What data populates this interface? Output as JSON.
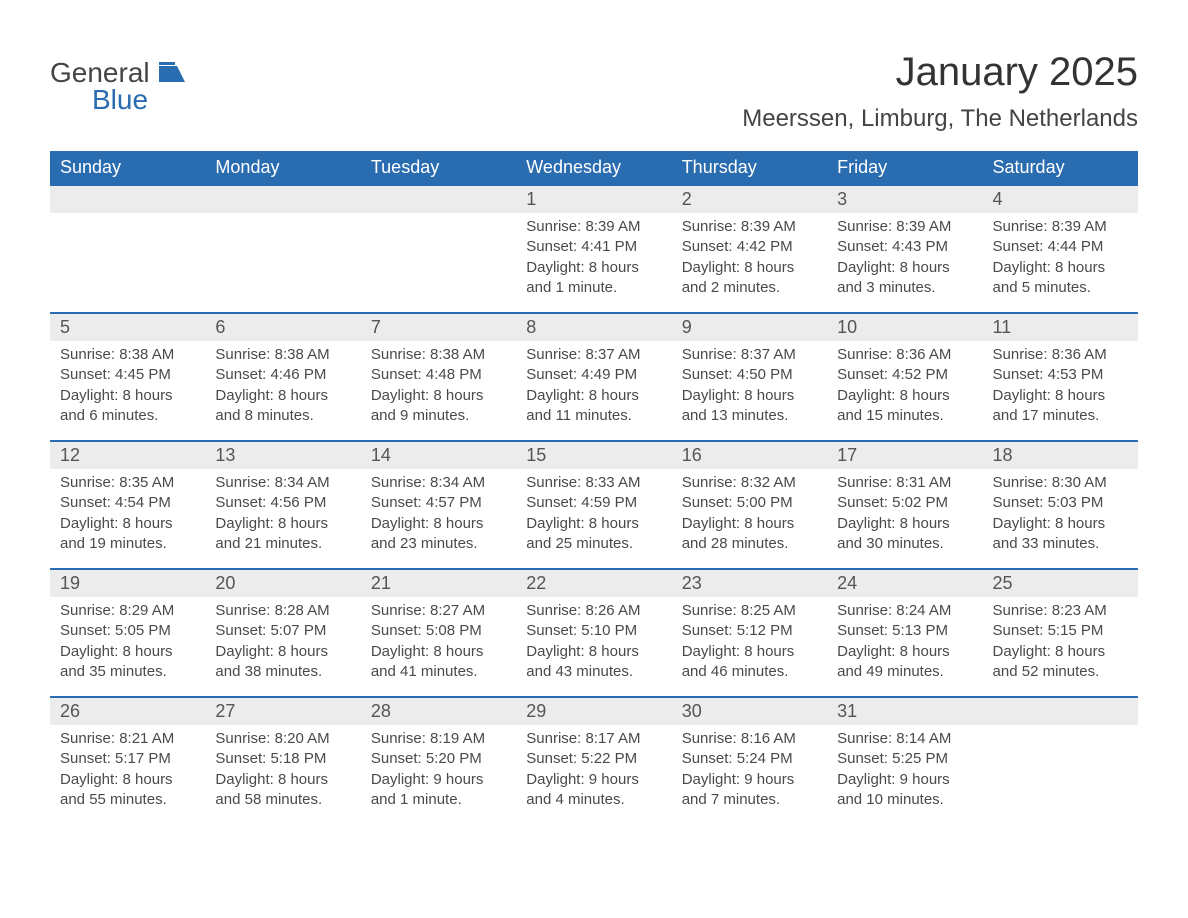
{
  "logo": {
    "word1": "General",
    "word2": "Blue"
  },
  "title": "January 2025",
  "location": "Meerssen, Limburg, The Netherlands",
  "colors": {
    "header_bg": "#2a6cb0",
    "header_text": "#ffffff",
    "daynum_bg": "#ececec",
    "row_topline": "#2a6cb0",
    "body_text": "#4a4a4a",
    "page_bg": "#ffffff"
  },
  "fonts": {
    "title_size_pt": 30,
    "location_size_pt": 18,
    "header_size_pt": 14,
    "cell_size_pt": 11
  },
  "weekdays": [
    "Sunday",
    "Monday",
    "Tuesday",
    "Wednesday",
    "Thursday",
    "Friday",
    "Saturday"
  ],
  "weeks": [
    [
      null,
      null,
      null,
      {
        "day": "1",
        "sunrise": "Sunrise: 8:39 AM",
        "sunset": "Sunset: 4:41 PM",
        "daylight": "Daylight: 8 hours and 1 minute."
      },
      {
        "day": "2",
        "sunrise": "Sunrise: 8:39 AM",
        "sunset": "Sunset: 4:42 PM",
        "daylight": "Daylight: 8 hours and 2 minutes."
      },
      {
        "day": "3",
        "sunrise": "Sunrise: 8:39 AM",
        "sunset": "Sunset: 4:43 PM",
        "daylight": "Daylight: 8 hours and 3 minutes."
      },
      {
        "day": "4",
        "sunrise": "Sunrise: 8:39 AM",
        "sunset": "Sunset: 4:44 PM",
        "daylight": "Daylight: 8 hours and 5 minutes."
      }
    ],
    [
      {
        "day": "5",
        "sunrise": "Sunrise: 8:38 AM",
        "sunset": "Sunset: 4:45 PM",
        "daylight": "Daylight: 8 hours and 6 minutes."
      },
      {
        "day": "6",
        "sunrise": "Sunrise: 8:38 AM",
        "sunset": "Sunset: 4:46 PM",
        "daylight": "Daylight: 8 hours and 8 minutes."
      },
      {
        "day": "7",
        "sunrise": "Sunrise: 8:38 AM",
        "sunset": "Sunset: 4:48 PM",
        "daylight": "Daylight: 8 hours and 9 minutes."
      },
      {
        "day": "8",
        "sunrise": "Sunrise: 8:37 AM",
        "sunset": "Sunset: 4:49 PM",
        "daylight": "Daylight: 8 hours and 11 minutes."
      },
      {
        "day": "9",
        "sunrise": "Sunrise: 8:37 AM",
        "sunset": "Sunset: 4:50 PM",
        "daylight": "Daylight: 8 hours and 13 minutes."
      },
      {
        "day": "10",
        "sunrise": "Sunrise: 8:36 AM",
        "sunset": "Sunset: 4:52 PM",
        "daylight": "Daylight: 8 hours and 15 minutes."
      },
      {
        "day": "11",
        "sunrise": "Sunrise: 8:36 AM",
        "sunset": "Sunset: 4:53 PM",
        "daylight": "Daylight: 8 hours and 17 minutes."
      }
    ],
    [
      {
        "day": "12",
        "sunrise": "Sunrise: 8:35 AM",
        "sunset": "Sunset: 4:54 PM",
        "daylight": "Daylight: 8 hours and 19 minutes."
      },
      {
        "day": "13",
        "sunrise": "Sunrise: 8:34 AM",
        "sunset": "Sunset: 4:56 PM",
        "daylight": "Daylight: 8 hours and 21 minutes."
      },
      {
        "day": "14",
        "sunrise": "Sunrise: 8:34 AM",
        "sunset": "Sunset: 4:57 PM",
        "daylight": "Daylight: 8 hours and 23 minutes."
      },
      {
        "day": "15",
        "sunrise": "Sunrise: 8:33 AM",
        "sunset": "Sunset: 4:59 PM",
        "daylight": "Daylight: 8 hours and 25 minutes."
      },
      {
        "day": "16",
        "sunrise": "Sunrise: 8:32 AM",
        "sunset": "Sunset: 5:00 PM",
        "daylight": "Daylight: 8 hours and 28 minutes."
      },
      {
        "day": "17",
        "sunrise": "Sunrise: 8:31 AM",
        "sunset": "Sunset: 5:02 PM",
        "daylight": "Daylight: 8 hours and 30 minutes."
      },
      {
        "day": "18",
        "sunrise": "Sunrise: 8:30 AM",
        "sunset": "Sunset: 5:03 PM",
        "daylight": "Daylight: 8 hours and 33 minutes."
      }
    ],
    [
      {
        "day": "19",
        "sunrise": "Sunrise: 8:29 AM",
        "sunset": "Sunset: 5:05 PM",
        "daylight": "Daylight: 8 hours and 35 minutes."
      },
      {
        "day": "20",
        "sunrise": "Sunrise: 8:28 AM",
        "sunset": "Sunset: 5:07 PM",
        "daylight": "Daylight: 8 hours and 38 minutes."
      },
      {
        "day": "21",
        "sunrise": "Sunrise: 8:27 AM",
        "sunset": "Sunset: 5:08 PM",
        "daylight": "Daylight: 8 hours and 41 minutes."
      },
      {
        "day": "22",
        "sunrise": "Sunrise: 8:26 AM",
        "sunset": "Sunset: 5:10 PM",
        "daylight": "Daylight: 8 hours and 43 minutes."
      },
      {
        "day": "23",
        "sunrise": "Sunrise: 8:25 AM",
        "sunset": "Sunset: 5:12 PM",
        "daylight": "Daylight: 8 hours and 46 minutes."
      },
      {
        "day": "24",
        "sunrise": "Sunrise: 8:24 AM",
        "sunset": "Sunset: 5:13 PM",
        "daylight": "Daylight: 8 hours and 49 minutes."
      },
      {
        "day": "25",
        "sunrise": "Sunrise: 8:23 AM",
        "sunset": "Sunset: 5:15 PM",
        "daylight": "Daylight: 8 hours and 52 minutes."
      }
    ],
    [
      {
        "day": "26",
        "sunrise": "Sunrise: 8:21 AM",
        "sunset": "Sunset: 5:17 PM",
        "daylight": "Daylight: 8 hours and 55 minutes."
      },
      {
        "day": "27",
        "sunrise": "Sunrise: 8:20 AM",
        "sunset": "Sunset: 5:18 PM",
        "daylight": "Daylight: 8 hours and 58 minutes."
      },
      {
        "day": "28",
        "sunrise": "Sunrise: 8:19 AM",
        "sunset": "Sunset: 5:20 PM",
        "daylight": "Daylight: 9 hours and 1 minute."
      },
      {
        "day": "29",
        "sunrise": "Sunrise: 8:17 AM",
        "sunset": "Sunset: 5:22 PM",
        "daylight": "Daylight: 9 hours and 4 minutes."
      },
      {
        "day": "30",
        "sunrise": "Sunrise: 8:16 AM",
        "sunset": "Sunset: 5:24 PM",
        "daylight": "Daylight: 9 hours and 7 minutes."
      },
      {
        "day": "31",
        "sunrise": "Sunrise: 8:14 AM",
        "sunset": "Sunset: 5:25 PM",
        "daylight": "Daylight: 9 hours and 10 minutes."
      },
      null
    ]
  ]
}
